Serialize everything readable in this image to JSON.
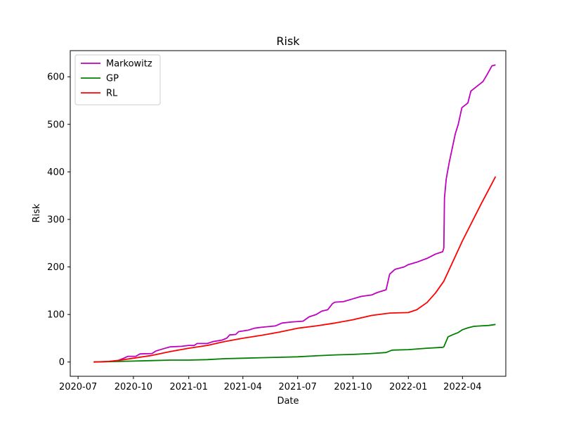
{
  "chart_data": {
    "type": "line",
    "title": "Risk",
    "xlabel": "Date",
    "ylabel": "Risk",
    "xlim": [
      "2020-06-18",
      "2022-06-12"
    ],
    "ylim": [
      -30,
      655
    ],
    "x_ticks": [
      {
        "date": "2020-07-01",
        "label": "2020-07"
      },
      {
        "date": "2020-10-01",
        "label": "2020-10"
      },
      {
        "date": "2021-01-01",
        "label": "2021-01"
      },
      {
        "date": "2021-04-01",
        "label": "2021-04"
      },
      {
        "date": "2021-07-01",
        "label": "2021-07"
      },
      {
        "date": "2021-10-01",
        "label": "2021-10"
      },
      {
        "date": "2022-01-01",
        "label": "2022-01"
      },
      {
        "date": "2022-04-01",
        "label": "2022-04"
      }
    ],
    "y_ticks": [
      0,
      100,
      200,
      300,
      400,
      500,
      600
    ],
    "legend_position": "top-left",
    "grid": false,
    "series": [
      {
        "name": "Markowitz",
        "color": "#bf00bf",
        "points": [
          [
            "2020-07-27",
            0
          ],
          [
            "2020-08-20",
            1
          ],
          [
            "2020-09-05",
            3
          ],
          [
            "2020-09-15",
            8
          ],
          [
            "2020-09-22",
            12
          ],
          [
            "2020-10-05",
            12
          ],
          [
            "2020-10-12",
            17
          ],
          [
            "2020-11-01",
            18
          ],
          [
            "2020-11-07",
            23
          ],
          [
            "2020-11-20",
            28
          ],
          [
            "2020-12-01",
            32
          ],
          [
            "2020-12-20",
            33
          ],
          [
            "2021-01-01",
            35
          ],
          [
            "2021-01-10",
            35
          ],
          [
            "2021-01-15",
            39
          ],
          [
            "2021-02-01",
            39
          ],
          [
            "2021-02-10",
            43
          ],
          [
            "2021-02-25",
            46
          ],
          [
            "2021-03-05",
            50
          ],
          [
            "2021-03-10",
            57
          ],
          [
            "2021-03-20",
            58
          ],
          [
            "2021-03-25",
            64
          ],
          [
            "2021-04-10",
            67
          ],
          [
            "2021-04-20",
            71
          ],
          [
            "2021-05-01",
            73
          ],
          [
            "2021-05-25",
            76
          ],
          [
            "2021-06-05",
            82
          ],
          [
            "2021-06-20",
            84
          ],
          [
            "2021-07-10",
            86
          ],
          [
            "2021-07-20",
            95
          ],
          [
            "2021-08-01",
            100
          ],
          [
            "2021-08-10",
            107
          ],
          [
            "2021-08-20",
            110
          ],
          [
            "2021-08-28",
            123
          ],
          [
            "2021-09-01",
            126
          ],
          [
            "2021-09-15",
            127
          ],
          [
            "2021-10-01",
            133
          ],
          [
            "2021-10-15",
            138
          ],
          [
            "2021-11-01",
            141
          ],
          [
            "2021-11-10",
            146
          ],
          [
            "2021-11-25",
            152
          ],
          [
            "2021-12-01",
            185
          ],
          [
            "2021-12-10",
            195
          ],
          [
            "2021-12-25",
            200
          ],
          [
            "2022-01-01",
            205
          ],
          [
            "2022-01-15",
            210
          ],
          [
            "2022-02-01",
            218
          ],
          [
            "2022-02-15",
            227
          ],
          [
            "2022-02-27",
            232
          ],
          [
            "2022-03-01",
            240
          ],
          [
            "2022-03-02",
            345
          ],
          [
            "2022-03-05",
            385
          ],
          [
            "2022-03-10",
            420
          ],
          [
            "2022-03-15",
            450
          ],
          [
            "2022-03-20",
            480
          ],
          [
            "2022-03-25",
            500
          ],
          [
            "2022-03-31",
            535
          ],
          [
            "2022-04-10",
            545
          ],
          [
            "2022-04-15",
            570
          ],
          [
            "2022-04-25",
            580
          ],
          [
            "2022-05-05",
            590
          ],
          [
            "2022-05-12",
            605
          ],
          [
            "2022-05-20",
            623
          ],
          [
            "2022-05-26",
            625
          ]
        ]
      },
      {
        "name": "GP",
        "color": "#008000",
        "points": [
          [
            "2020-07-27",
            0
          ],
          [
            "2020-09-01",
            1
          ],
          [
            "2020-10-01",
            2
          ],
          [
            "2020-11-01",
            3
          ],
          [
            "2020-12-01",
            4
          ],
          [
            "2021-01-01",
            4
          ],
          [
            "2021-02-01",
            5
          ],
          [
            "2021-03-01",
            7
          ],
          [
            "2021-04-01",
            8
          ],
          [
            "2021-05-01",
            9
          ],
          [
            "2021-06-01",
            10
          ],
          [
            "2021-07-01",
            11
          ],
          [
            "2021-08-01",
            13
          ],
          [
            "2021-09-01",
            15
          ],
          [
            "2021-10-01",
            16
          ],
          [
            "2021-11-01",
            18
          ],
          [
            "2021-11-25",
            20
          ],
          [
            "2021-12-05",
            25
          ],
          [
            "2022-01-01",
            26
          ],
          [
            "2022-02-01",
            29
          ],
          [
            "2022-02-27",
            31
          ],
          [
            "2022-03-01",
            32
          ],
          [
            "2022-03-08",
            53
          ],
          [
            "2022-03-15",
            57
          ],
          [
            "2022-03-25",
            62
          ],
          [
            "2022-04-01",
            68
          ],
          [
            "2022-04-10",
            72
          ],
          [
            "2022-04-20",
            75
          ],
          [
            "2022-05-01",
            76
          ],
          [
            "2022-05-15",
            77
          ],
          [
            "2022-05-26",
            79
          ]
        ]
      },
      {
        "name": "RL",
        "color": "#ff0000",
        "points": [
          [
            "2020-07-27",
            0
          ],
          [
            "2020-08-20",
            1
          ],
          [
            "2020-09-10",
            4
          ],
          [
            "2020-10-01",
            8
          ],
          [
            "2020-11-01",
            14
          ],
          [
            "2020-12-01",
            22
          ],
          [
            "2021-01-01",
            29
          ],
          [
            "2021-02-01",
            35
          ],
          [
            "2021-03-01",
            43
          ],
          [
            "2021-04-01",
            50
          ],
          [
            "2021-05-01",
            56
          ],
          [
            "2021-06-01",
            63
          ],
          [
            "2021-07-01",
            71
          ],
          [
            "2021-08-01",
            76
          ],
          [
            "2021-09-01",
            82
          ],
          [
            "2021-10-01",
            89
          ],
          [
            "2021-11-01",
            98
          ],
          [
            "2021-12-01",
            103
          ],
          [
            "2022-01-01",
            104
          ],
          [
            "2022-01-15",
            110
          ],
          [
            "2022-02-01",
            125
          ],
          [
            "2022-02-15",
            145
          ],
          [
            "2022-03-01",
            170
          ],
          [
            "2022-04-01",
            255
          ],
          [
            "2022-05-01",
            330
          ],
          [
            "2022-05-26",
            390
          ]
        ]
      }
    ]
  }
}
